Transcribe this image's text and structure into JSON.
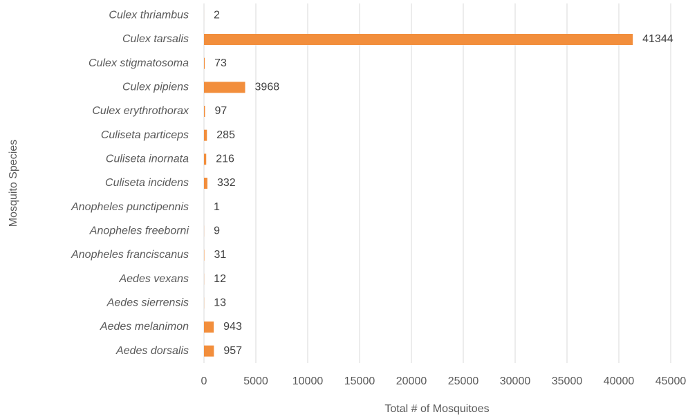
{
  "chart_data": {
    "type": "barh",
    "categories": [
      "Culex thriambus",
      "Culex tarsalis",
      "Culex stigmatosoma",
      "Culex pipiens",
      "Culex erythrothorax",
      "Culiseta particeps",
      "Culiseta inornata",
      "Culiseta incidens",
      "Anopheles punctipennis",
      "Anopheles freeborni",
      "Anopheles franciscanus",
      "Aedes vexans",
      "Aedes sierrensis",
      "Aedes melanimon",
      "Aedes dorsalis"
    ],
    "values": [
      2,
      41344,
      73,
      3968,
      97,
      285,
      216,
      332,
      1,
      9,
      31,
      12,
      13,
      943,
      957
    ],
    "color": "#f28e3c",
    "xlim": [
      0,
      45000
    ],
    "xticks": [
      0,
      5000,
      10000,
      15000,
      20000,
      25000,
      30000,
      35000,
      40000,
      45000
    ],
    "grid": true,
    "xlabel": "Total # of Mosquitoes",
    "ylabel": "Mosquito Species"
  }
}
